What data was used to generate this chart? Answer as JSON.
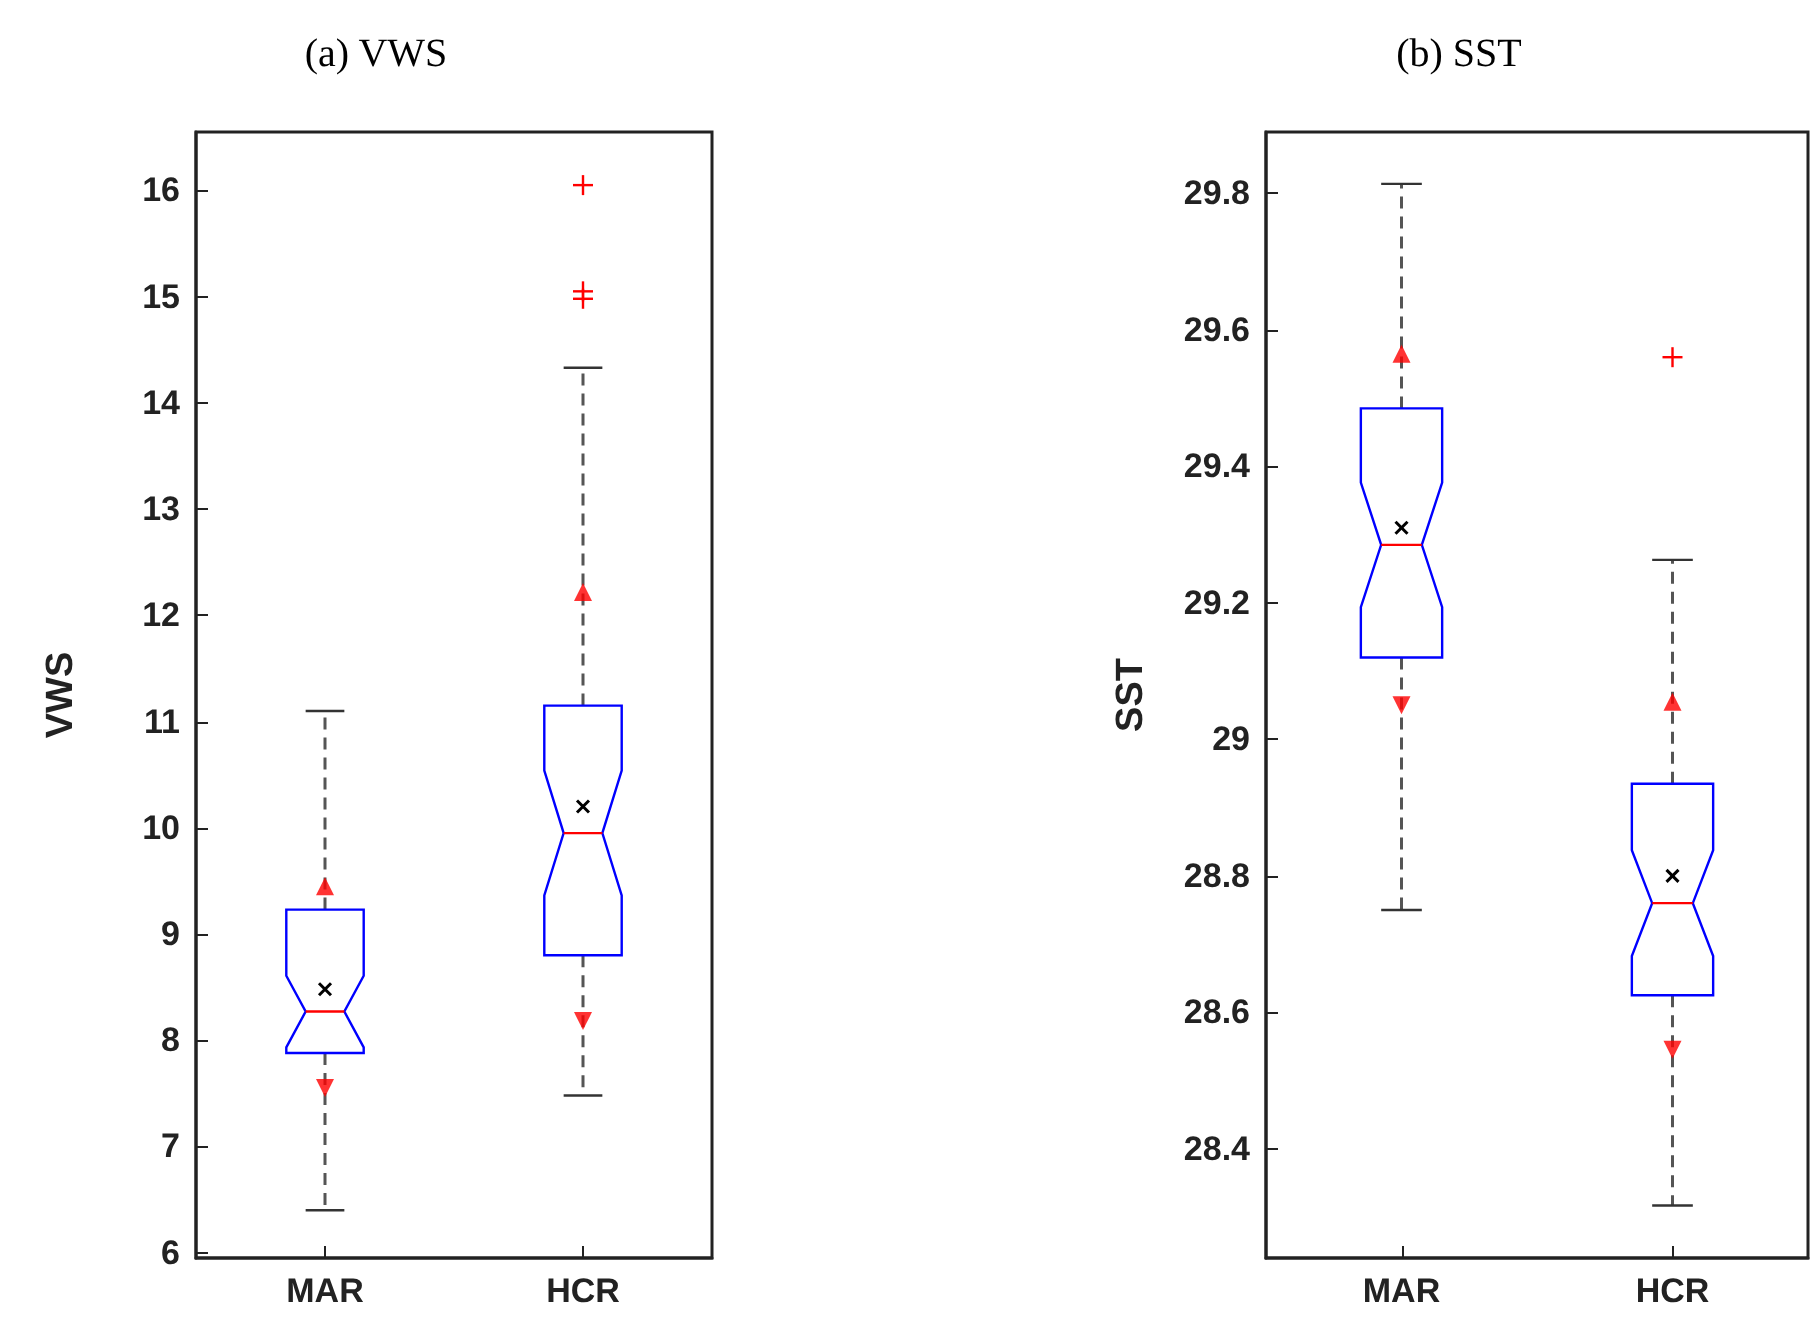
{
  "chart_data": [
    {
      "type": "box",
      "title": "(a) VWS",
      "ylabel": "VWS",
      "categories": [
        "MAR",
        "HCR"
      ],
      "ylim": [
        5.95,
        16.55
      ],
      "yticks": [
        6,
        7,
        8,
        9,
        10,
        11,
        12,
        13,
        14,
        15,
        16
      ],
      "grid": false,
      "series": [
        {
          "type": "box",
          "color": "#0000ff",
          "boxes": [
            {
              "low": 6.4,
              "q1": 7.88,
              "median": 8.27,
              "q3": 9.23,
              "high": 11.1,
              "mean": 8.48
            },
            {
              "low": 7.48,
              "q1": 8.8,
              "median": 9.95,
              "q3": 11.15,
              "high": 14.33,
              "mean": 10.2,
              "outliers": [
                16.05,
                15.05,
                14.98
              ]
            }
          ]
        },
        {
          "type": "scatter",
          "x": [
            "MAR",
            "HCR"
          ],
          "values": [
            9.45,
            12.22
          ],
          "color": "#ff0000",
          "marker": "triangle"
        },
        {
          "type": "scatter",
          "x": [
            "MAR",
            "HCR"
          ],
          "values": [
            7.55,
            8.18
          ],
          "color": "#ff0000",
          "marker": "triangle"
        }
      ]
    },
    {
      "type": "box",
      "title": "(b) SST",
      "ylabel": "SST",
      "categories": [
        "MAR",
        "HCR"
      ],
      "ylim": [
        28.24,
        29.89
      ],
      "yticks": [
        28.4,
        28.6,
        28.8,
        29,
        29.2,
        29.4,
        29.6,
        29.8
      ],
      "grid": false,
      "series": [
        {
          "type": "box",
          "color": "#0000ff",
          "boxes": [
            {
              "low": 28.75,
              "q1": 29.12,
              "median": 29.285,
              "q3": 29.485,
              "high": 29.814,
              "mean": 29.31
            },
            {
              "low": 28.317,
              "q1": 28.625,
              "median": 28.76,
              "q3": 28.935,
              "high": 29.263,
              "mean": 28.8,
              "outliers": [
                29.56
              ]
            }
          ]
        },
        {
          "type": "scatter",
          "x": [
            "MAR",
            "HCR"
          ],
          "values": [
            29.565,
            29.055
          ],
          "color": "#ff0000",
          "marker": "triangle"
        },
        {
          "type": "scatter",
          "x": [
            "MAR",
            "HCR"
          ],
          "values": [
            29.05,
            28.545
          ],
          "color": "#ff0000",
          "marker": "triangle"
        }
      ]
    }
  ]
}
